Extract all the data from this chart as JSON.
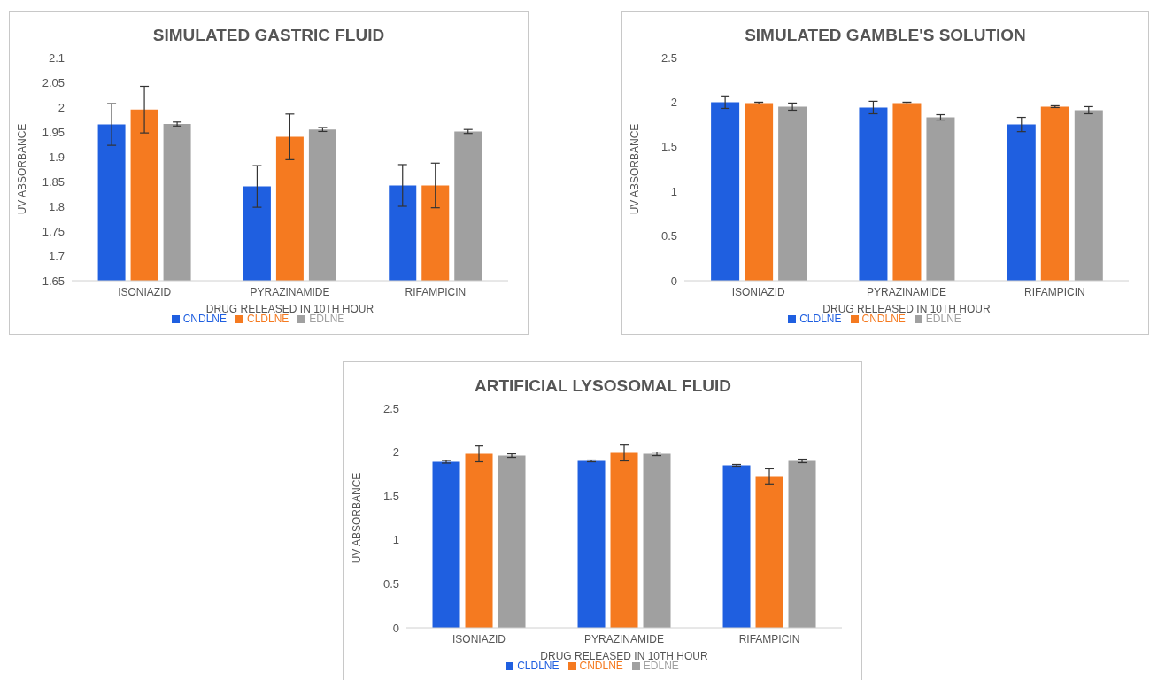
{
  "chart_data": [
    {
      "type": "bar",
      "title": "SIMULATED GASTRIC FLUID",
      "xlabel": "DRUG RELEASED IN 10TH HOUR",
      "ylabel": "UV ABSORBANCE",
      "categories": [
        "ISONIAZID",
        "PYRAZINAMIDE",
        "RIFAMPICIN"
      ],
      "ylim": [
        1.65,
        2.1
      ],
      "yticks": [
        1.65,
        1.7,
        1.75,
        1.8,
        1.85,
        1.9,
        1.95,
        2,
        2.05,
        2.1
      ],
      "legend": "bottom",
      "grid": false,
      "series": [
        {
          "name": "CNDLNE",
          "color": "#1f5fe0",
          "values": [
            1.965,
            1.84,
            1.842
          ],
          "errors": [
            0.042,
            0.042,
            0.042
          ]
        },
        {
          "name": "CLDLNE",
          "color": "#f57a20",
          "values": [
            1.995,
            1.94,
            1.842
          ],
          "errors": [
            0.047,
            0.046,
            0.045
          ]
        },
        {
          "name": "EDLNE",
          "color": "#a0a0a0",
          "values": [
            1.966,
            1.955,
            1.951
          ],
          "errors": [
            0.004,
            0.004,
            0.004
          ]
        }
      ]
    },
    {
      "type": "bar",
      "title": "SIMULATED GAMBLE'S SOLUTION",
      "xlabel": "DRUG RELEASED IN 10TH HOUR",
      "ylabel": "UV ABSORBANCE",
      "categories": [
        "ISONIAZID",
        "PYRAZINAMIDE",
        "RIFAMPICIN"
      ],
      "ylim": [
        0,
        2.5
      ],
      "yticks": [
        0,
        0.5,
        1,
        1.5,
        2,
        2.5
      ],
      "legend": "bottom",
      "grid": false,
      "series": [
        {
          "name": "CLDLNE",
          "color": "#1f5fe0",
          "values": [
            2.0,
            1.94,
            1.75
          ],
          "errors": [
            0.07,
            0.07,
            0.08
          ]
        },
        {
          "name": "CNDLNE",
          "color": "#f57a20",
          "values": [
            1.99,
            1.99,
            1.95
          ],
          "errors": [
            0.01,
            0.01,
            0.01
          ]
        },
        {
          "name": "EDLNE",
          "color": "#a0a0a0",
          "values": [
            1.95,
            1.83,
            1.91
          ],
          "errors": [
            0.04,
            0.03,
            0.04
          ]
        }
      ]
    },
    {
      "type": "bar",
      "title": "ARTIFICIAL LYSOSOMAL FLUID",
      "xlabel": "DRUG RELEASED IN 10TH HOUR",
      "ylabel": "UV ABSORBANCE",
      "categories": [
        "ISONIAZID",
        "PYRAZINAMIDE",
        "RIFAMPICIN"
      ],
      "ylim": [
        0,
        2.5
      ],
      "yticks": [
        0,
        0.5,
        1,
        1.5,
        2,
        2.5
      ],
      "legend": "bottom",
      "grid": false,
      "series": [
        {
          "name": "CLDLNE",
          "color": "#1f5fe0",
          "values": [
            1.89,
            1.9,
            1.85
          ],
          "errors": [
            0.015,
            0.01,
            0.01
          ]
        },
        {
          "name": "CNDLNE",
          "color": "#f57a20",
          "values": [
            1.98,
            1.99,
            1.72
          ],
          "errors": [
            0.09,
            0.09,
            0.09
          ]
        },
        {
          "name": "EDLNE",
          "color": "#a0a0a0",
          "values": [
            1.96,
            1.98,
            1.9
          ],
          "errors": [
            0.02,
            0.02,
            0.02
          ]
        }
      ]
    }
  ]
}
